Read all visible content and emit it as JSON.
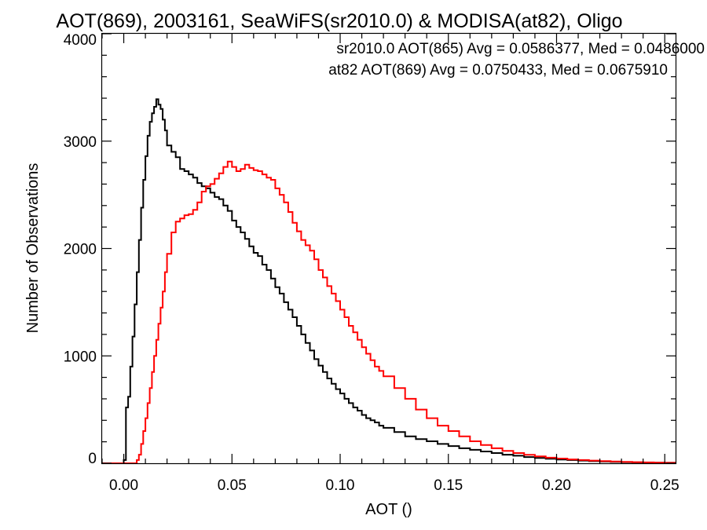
{
  "chart_data": {
    "type": "line",
    "title": "AOT(869), 2003161, SeaWiFS(sr2010.0) & MODISA(at82), Oligo",
    "xlabel": "AOT ()",
    "ylabel": "Number of Observations",
    "xlim": [
      -0.01,
      0.255
    ],
    "ylim": [
      0,
      4000
    ],
    "x_ticks": [
      0.0,
      0.05,
      0.1,
      0.15,
      0.2,
      0.25
    ],
    "x_tick_labels": [
      "0.00",
      "0.05",
      "0.10",
      "0.15",
      "0.20",
      "0.25"
    ],
    "y_ticks": [
      0,
      1000,
      2000,
      3000,
      4000
    ],
    "y_tick_labels": [
      "0",
      "1000",
      "2000",
      "3000",
      "4000"
    ],
    "grid": false,
    "step": true,
    "annotations": [
      {
        "text": "sr2010.0 AOT(865) Avg = 0.0586377, Med = 0.0486000",
        "color": "#000000"
      },
      {
        "text": "at82 AOT(869) Avg = 0.0750433, Med = 0.0675910",
        "color": "#ff0000"
      }
    ],
    "series": [
      {
        "color": "#000000",
        "x": [
          -0.01,
          0.0,
          0.001,
          0.002,
          0.003,
          0.004,
          0.005,
          0.006,
          0.007,
          0.008,
          0.009,
          0.01,
          0.011,
          0.012,
          0.013,
          0.014,
          0.015,
          0.016,
          0.017,
          0.018,
          0.019,
          0.02,
          0.022,
          0.024,
          0.026,
          0.028,
          0.03,
          0.032,
          0.034,
          0.036,
          0.038,
          0.04,
          0.042,
          0.044,
          0.046,
          0.048,
          0.05,
          0.052,
          0.054,
          0.056,
          0.058,
          0.06,
          0.062,
          0.064,
          0.066,
          0.068,
          0.07,
          0.072,
          0.074,
          0.076,
          0.078,
          0.08,
          0.082,
          0.084,
          0.086,
          0.088,
          0.09,
          0.092,
          0.094,
          0.096,
          0.098,
          0.1,
          0.102,
          0.104,
          0.106,
          0.108,
          0.11,
          0.112,
          0.114,
          0.116,
          0.118,
          0.12,
          0.125,
          0.13,
          0.135,
          0.14,
          0.145,
          0.15,
          0.155,
          0.16,
          0.165,
          0.17,
          0.175,
          0.18,
          0.185,
          0.19,
          0.195,
          0.2,
          0.205,
          0.21,
          0.215,
          0.22,
          0.225,
          0.23,
          0.235,
          0.24,
          0.245,
          0.25,
          0.255
        ],
        "y": [
          0,
          30,
          520,
          620,
          900,
          1180,
          1480,
          1780,
          2080,
          2380,
          2640,
          2860,
          3050,
          3180,
          3260,
          3320,
          3390,
          3340,
          3300,
          3200,
          3100,
          2960,
          2900,
          2850,
          2740,
          2720,
          2690,
          2660,
          2610,
          2580,
          2560,
          2520,
          2480,
          2460,
          2400,
          2350,
          2260,
          2200,
          2150,
          2090,
          2020,
          1960,
          1930,
          1850,
          1800,
          1720,
          1640,
          1580,
          1500,
          1430,
          1360,
          1280,
          1200,
          1120,
          1050,
          970,
          910,
          850,
          790,
          740,
          690,
          650,
          600,
          560,
          520,
          490,
          450,
          420,
          400,
          380,
          350,
          330,
          290,
          250,
          225,
          205,
          180,
          160,
          140,
          125,
          110,
          95,
          80,
          70,
          58,
          50,
          42,
          35,
          30,
          25,
          20,
          16,
          13,
          10,
          8,
          6,
          5,
          4,
          3
        ]
      },
      {
        "color": "#ff0000",
        "x": [
          -0.01,
          0.0,
          0.004,
          0.006,
          0.007,
          0.008,
          0.009,
          0.01,
          0.011,
          0.012,
          0.013,
          0.014,
          0.015,
          0.016,
          0.017,
          0.018,
          0.019,
          0.02,
          0.022,
          0.024,
          0.026,
          0.028,
          0.03,
          0.032,
          0.034,
          0.036,
          0.038,
          0.04,
          0.042,
          0.044,
          0.046,
          0.048,
          0.05,
          0.052,
          0.054,
          0.056,
          0.058,
          0.06,
          0.062,
          0.064,
          0.066,
          0.068,
          0.07,
          0.072,
          0.074,
          0.076,
          0.078,
          0.08,
          0.082,
          0.084,
          0.086,
          0.088,
          0.09,
          0.092,
          0.094,
          0.096,
          0.098,
          0.1,
          0.102,
          0.104,
          0.106,
          0.108,
          0.11,
          0.112,
          0.114,
          0.116,
          0.118,
          0.12,
          0.125,
          0.13,
          0.135,
          0.14,
          0.145,
          0.15,
          0.155,
          0.16,
          0.165,
          0.17,
          0.175,
          0.18,
          0.185,
          0.19,
          0.195,
          0.2,
          0.205,
          0.21,
          0.215,
          0.22,
          0.225,
          0.23,
          0.235,
          0.24,
          0.245,
          0.25,
          0.255
        ],
        "y": [
          0,
          0,
          0,
          30,
          80,
          180,
          300,
          420,
          560,
          700,
          850,
          1000,
          1150,
          1300,
          1450,
          1600,
          1780,
          1950,
          2150,
          2250,
          2280,
          2310,
          2320,
          2360,
          2430,
          2530,
          2580,
          2600,
          2650,
          2700,
          2760,
          2810,
          2760,
          2720,
          2740,
          2780,
          2750,
          2730,
          2720,
          2690,
          2660,
          2640,
          2560,
          2500,
          2430,
          2340,
          2240,
          2160,
          2080,
          2030,
          1980,
          1900,
          1800,
          1730,
          1650,
          1580,
          1510,
          1430,
          1360,
          1280,
          1220,
          1150,
          1080,
          1020,
          960,
          900,
          860,
          810,
          700,
          600,
          500,
          420,
          350,
          300,
          250,
          205,
          170,
          140,
          115,
          95,
          78,
          64,
          52,
          44,
          36,
          30,
          25,
          20,
          16,
          13,
          10,
          8,
          6,
          5,
          4
        ]
      }
    ]
  }
}
